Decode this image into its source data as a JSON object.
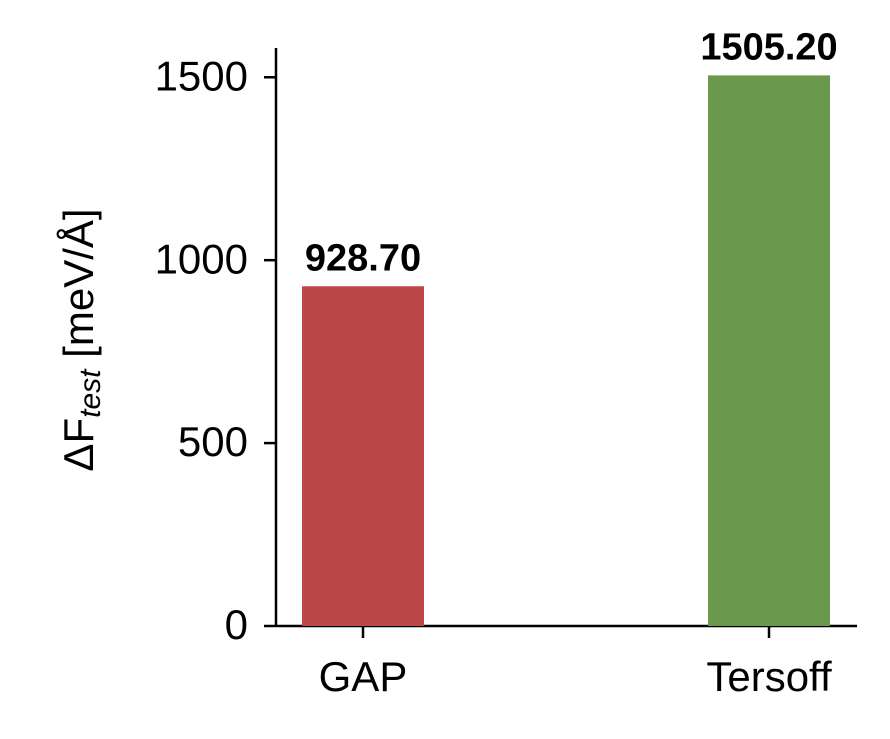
{
  "chart_data": {
    "type": "bar",
    "ylabel": "ΔF",
    "ylabel_subscript": "test",
    "ylabel_unit": "[meV/Å]",
    "categories": [
      "GAP",
      "Tersoff"
    ],
    "values": [
      928.7,
      1505.2
    ],
    "value_labels": [
      "928.70",
      "1505.20"
    ],
    "colors": [
      "#bc4749",
      "#6a994e"
    ],
    "ylim": [
      0,
      1580
    ],
    "yticks": [
      0,
      500,
      1000,
      1500
    ],
    "grid": false
  }
}
